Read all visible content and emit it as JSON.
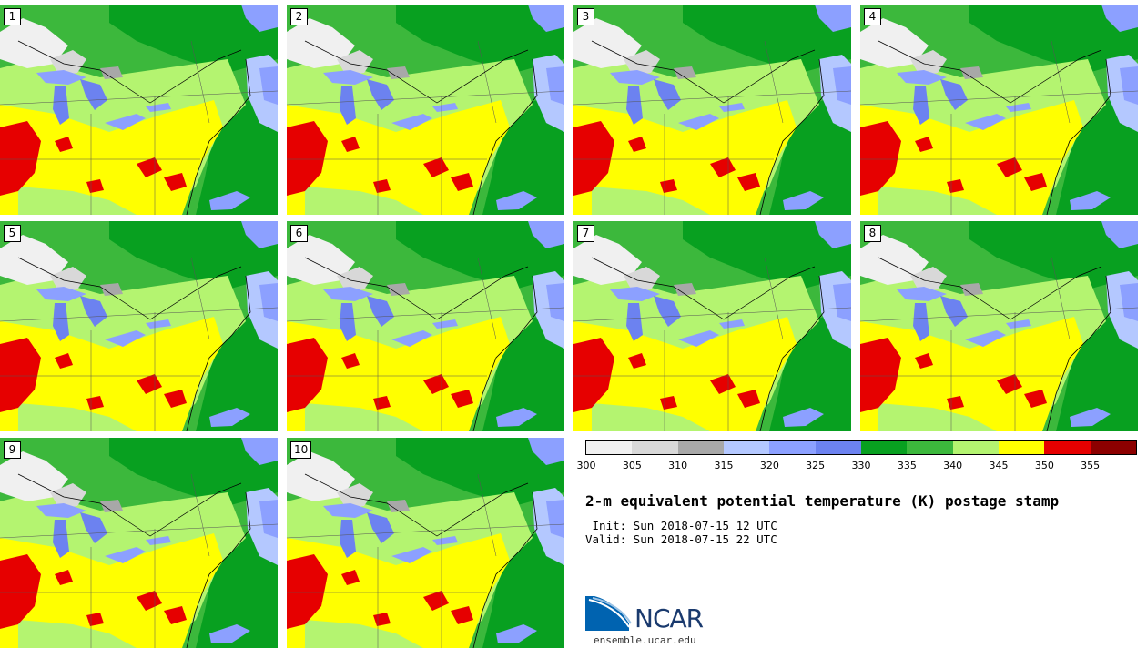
{
  "stamps": [
    {
      "label": "1"
    },
    {
      "label": "2"
    },
    {
      "label": "3"
    },
    {
      "label": "4"
    },
    {
      "label": "5"
    },
    {
      "label": "6"
    },
    {
      "label": "7"
    },
    {
      "label": "8"
    },
    {
      "label": "9"
    },
    {
      "label": "10"
    }
  ],
  "colorbar": {
    "colors": [
      "#f0f0f0",
      "#d8d8d8",
      "#a8a8a8",
      "#b4c8ff",
      "#8ca0ff",
      "#6c82f0",
      "#08a020",
      "#3cb83c",
      "#b4f470",
      "#ffff00",
      "#e60000",
      "#8c0000"
    ],
    "ticks": [
      "300",
      "305",
      "310",
      "315",
      "320",
      "325",
      "330",
      "335",
      "340",
      "345",
      "350",
      "355"
    ]
  },
  "title": "2-m equivalent potential temperature (K) postage stamp",
  "init": " Init: Sun 2018-07-15 12 UTC",
  "valid": "Valid: Sun 2018-07-15 22 UTC",
  "logo": {
    "text": "NCAR",
    "url": "ensemble.ucar.edu"
  }
}
